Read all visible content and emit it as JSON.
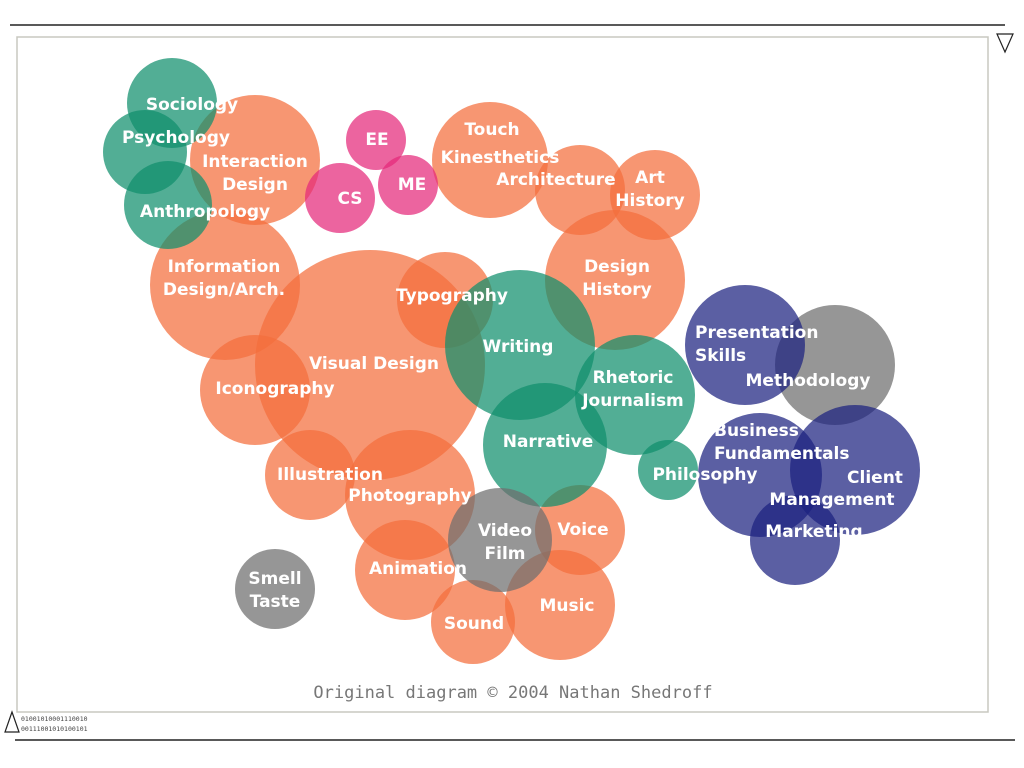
{
  "nodes": [
    {
      "lines": [
        "Sociology"
      ]
    },
    {
      "lines": [
        "Psychology"
      ]
    },
    {
      "lines": [
        "Interaction",
        "Design"
      ]
    },
    {
      "lines": [
        "Anthropology"
      ]
    },
    {
      "lines": [
        "EE"
      ]
    },
    {
      "lines": [
        "CS"
      ]
    },
    {
      "lines": [
        "ME"
      ]
    },
    {
      "lines": [
        "Touch"
      ]
    },
    {
      "lines": [
        "Kinesthetics"
      ]
    },
    {
      "lines": [
        "Architecture"
      ]
    },
    {
      "lines": [
        "Art",
        "History"
      ]
    },
    {
      "lines": [
        "Information",
        "Design/Arch."
      ]
    },
    {
      "lines": [
        "Typography"
      ]
    },
    {
      "lines": [
        "Design",
        "History"
      ]
    },
    {
      "lines": [
        "Writing"
      ]
    },
    {
      "lines": [
        "Visual Design"
      ]
    },
    {
      "lines": [
        "Iconography"
      ]
    },
    {
      "lines": [
        "Rhetoric",
        "Journalism"
      ]
    },
    {
      "lines": [
        "Narrative"
      ]
    },
    {
      "lines": [
        "Illustration"
      ]
    },
    {
      "lines": [
        "Photography"
      ]
    },
    {
      "lines": [
        "Philosophy"
      ]
    },
    {
      "lines": [
        "Video",
        "Film"
      ]
    },
    {
      "lines": [
        "Voice"
      ]
    },
    {
      "lines": [
        "Animation"
      ]
    },
    {
      "lines": [
        "Music"
      ]
    },
    {
      "lines": [
        "Sound"
      ]
    },
    {
      "lines": [
        "Smell",
        "Taste"
      ]
    },
    {
      "lines": [
        "Presentation",
        "Skills"
      ]
    },
    {
      "lines": [
        "Methodology"
      ]
    },
    {
      "lines": [
        "Business",
        "Fundamentals"
      ]
    },
    {
      "lines": [
        "Client",
        "Management"
      ]
    },
    {
      "lines": [
        "Marketing"
      ]
    }
  ],
  "caption": "Original diagram © 2004 Nathan Shedroff",
  "binary": [
    "01001010001110010",
    "00111001010100101"
  ]
}
